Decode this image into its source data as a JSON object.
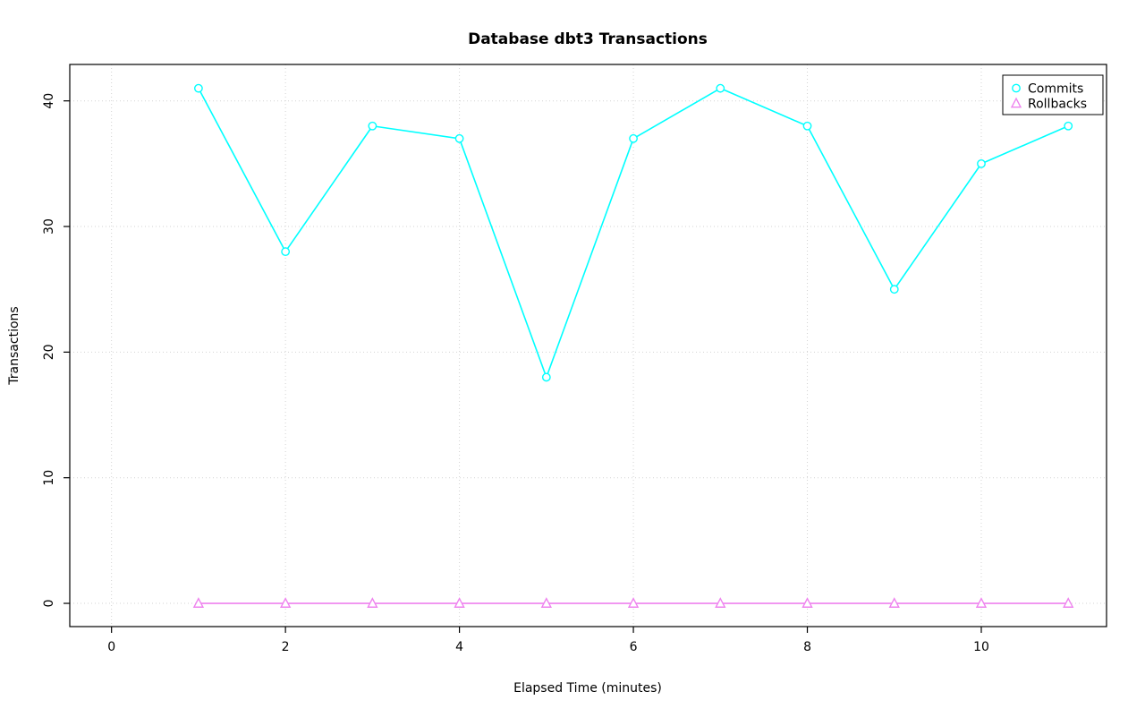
{
  "page": {
    "background": "#ffffff"
  },
  "chart_data": {
    "type": "line",
    "title": "Database dbt3 Transactions",
    "xlabel": "Elapsed Time (minutes)",
    "ylabel": "Transactions",
    "x": [
      1,
      2,
      3,
      4,
      5,
      6,
      7,
      8,
      9,
      10,
      11
    ],
    "series": [
      {
        "name": "Commits",
        "marker": "circle",
        "color": "#00FFFF",
        "values": [
          41,
          28,
          38,
          37,
          18,
          37,
          41,
          38,
          25,
          35,
          38
        ]
      },
      {
        "name": "Rollbacks",
        "marker": "triangle",
        "color": "#EE82EE",
        "values": [
          0,
          0,
          0,
          0,
          0,
          0,
          0,
          0,
          0,
          0,
          0
        ]
      }
    ],
    "x_ticks": [
      0,
      2,
      4,
      6,
      8,
      10
    ],
    "y_ticks": [
      0,
      10,
      20,
      30,
      40
    ],
    "xlim": [
      -0.48,
      11.44
    ],
    "ylim": [
      -1.85,
      42.9
    ],
    "grid": true,
    "grid_style": "dotted",
    "grid_color": "#d3d3d3",
    "axis_color": "#000000",
    "text_color": "#000000",
    "legend_position": "top-right",
    "legend_labels": [
      "Commits",
      "Rollbacks"
    ]
  }
}
